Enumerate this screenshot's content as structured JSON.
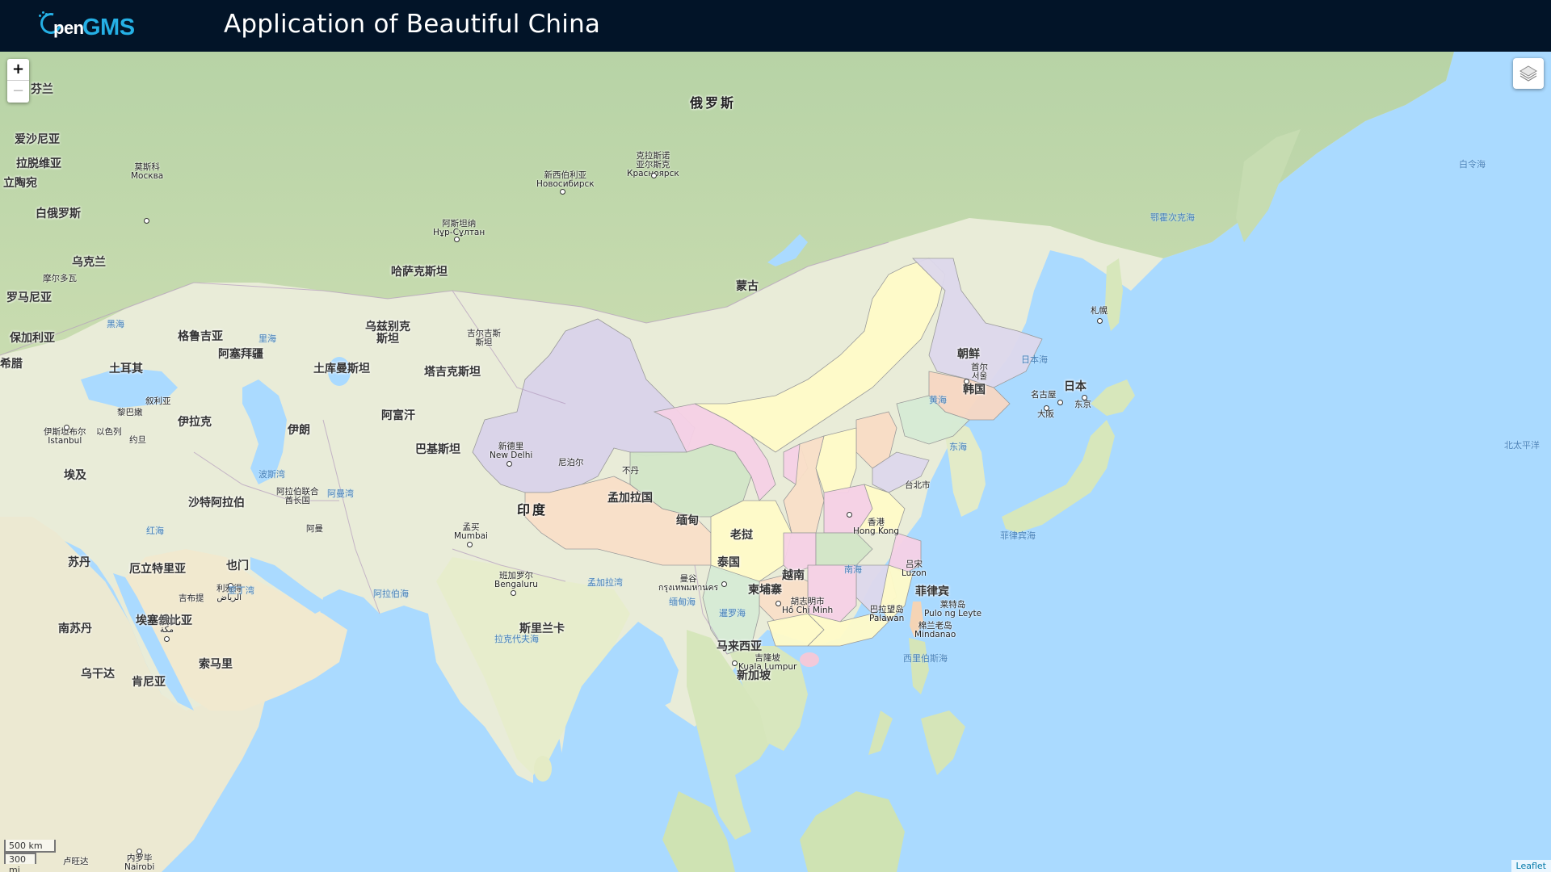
{
  "header": {
    "logo_text_a": "pen",
    "logo_text_b": "GMS",
    "title": "Application of Beautiful China"
  },
  "controls": {
    "zoom_in": "+",
    "zoom_out": "−",
    "layers_icon": "layers-icon"
  },
  "scale": {
    "metric": "500 km",
    "imperial": "300 mi"
  },
  "attribution": "Leaflet",
  "labels": {
    "russia": "俄罗斯",
    "mongolia": "蒙古",
    "kazakhstan": "哈萨克斯坦",
    "uzbekistan": "乌兹别克\n斯坦",
    "kyrgyzstan": "吉尔吉斯\n斯坦",
    "tajikistan": "塔吉克斯坦",
    "turkmenistan": "土库曼斯坦",
    "afghanistan": "阿富汗",
    "pakistan": "巴基斯坦",
    "iran": "伊朗",
    "iraq": "伊拉克",
    "india": "印度",
    "nepal": "尼泊尔",
    "bhutan": "不丹",
    "bangladesh": "孟加拉国",
    "myanmar": "缅甸",
    "laos": "老挝",
    "thailand": "泰国",
    "vietnam": "越南",
    "cambodia": "柬埔寨",
    "malaysia": "马来西亚",
    "philippines": "菲律宾",
    "korea_n": "朝鲜",
    "korea_s": "韩国",
    "japan": "日本",
    "srilanka": "斯里兰卡",
    "saudi": "沙特阿拉伯",
    "yemen": "也门",
    "oman": "阿曼",
    "egypt": "埃及",
    "sudan": "苏丹",
    "s_sudan": "南苏丹",
    "eritrea": "厄立特里亚",
    "ethiopia": "埃塞俄比亚",
    "somalia": "索马里",
    "kenya": "肯尼亚",
    "uganda": "乌干达",
    "djibouti": "吉布提",
    "turkey": "土耳其",
    "georgia": "格鲁吉亚",
    "azerbaijan": "阿塞拜疆",
    "syria": "叙利亚",
    "lebanon": "黎巴嫩",
    "israel": "以色列",
    "jordan": "约旦",
    "uae": "阿拉伯联合\n酋长国",
    "ukraine": "乌克兰",
    "belarus": "白俄罗斯",
    "moldova": "摩尔多瓦",
    "romania": "罗马尼亚",
    "bulgaria": "保加利亚",
    "greece": "希腊",
    "finland": "芬兰",
    "estonia": "爱沙尼亚",
    "latvia": "拉脱维亚",
    "lithuania": "立陶宛",
    "moscow": "莫斯科\nМосква",
    "novosibirsk": "新西伯利亚\nНовосибирск",
    "krasnoyarsk": "克拉斯诺\n亚尔斯克\nКрасноярск",
    "astana": "阿斯坦纳\nНұр-Сұлтан",
    "newdelhi": "新德里\nNew Delhi",
    "mumbai": "孟买\nMumbai",
    "bengaluru": "班加罗尔\nBengaluru",
    "bangkok": "曼谷\nกรุงเทพมหานคร",
    "hcmc": "胡志明市\nHồ Chí Minh",
    "kl": "吉隆坡\nKuala Lumpur",
    "singapore": "新加坡",
    "hongkong": "香港\nHong Kong",
    "taipei": "台北市",
    "seoul": "首尔\n서울",
    "tokyo": "东京",
    "nagoya": "名古屋",
    "osaka": "大阪",
    "sapporo": "札幌",
    "istanbul": "伊斯坦布尔\nIstanbul",
    "riyadh": "利雅得\nالرياض",
    "mecca": "麦加\nمكة",
    "nairobi": "内罗毕\nNairobi",
    "luzon": "吕宋\nLuzon",
    "palawan": "巴拉望岛\nPalawan",
    "mindanao": "棉兰老岛\nMindanao",
    "leyte": "莱特岛\nPulo ng Leyte",
    "rwanda": "卢旺达",
    "sea_okhotsk": "鄂霍次克海",
    "sea_bering": "白令海",
    "sea_japan": "日本海",
    "sea_yellow": "黄海",
    "sea_east": "东海",
    "sea_south": "南海",
    "sea_philippine": "菲律宾海",
    "sea_pacific": "北太平洋",
    "sea_bengal": "孟加拉湾",
    "sea_arabian": "阿拉伯海",
    "sea_laccadive": "拉克代夫海",
    "sea_andaman": "缅甸海",
    "sea_siam": "暹罗海",
    "sea_celebes": "西里伯斯海",
    "sea_red": "红海",
    "sea_aden": "亚丁湾",
    "sea_persian": "波斯湾",
    "sea_oman": "阿曼湾",
    "sea_black": "黑海",
    "sea_caspian": "里海"
  }
}
